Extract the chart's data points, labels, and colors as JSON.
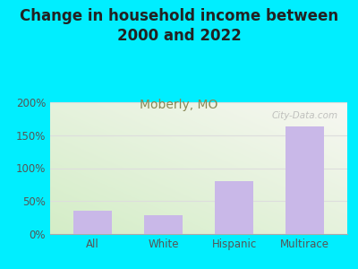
{
  "title": "Change in household income between\n2000 and 2022",
  "subtitle": "Moberly, MO",
  "categories": [
    "All",
    "White",
    "Hispanic",
    "Multirace"
  ],
  "values": [
    35,
    28,
    80,
    163
  ],
  "bar_color": "#c9b8e8",
  "title_fontsize": 12,
  "subtitle_fontsize": 10,
  "subtitle_color": "#888855",
  "background_outer": "#00eeff",
  "plot_bg_top_left": "#d4ecc8",
  "plot_bg_bottom_right": "#f5f5ee",
  "ylim": [
    0,
    200
  ],
  "yticks": [
    0,
    50,
    100,
    150,
    200
  ],
  "ytick_labels": [
    "0%",
    "50%",
    "100%",
    "150%",
    "200%"
  ],
  "watermark": "City-Data.com",
  "tick_color": "#555555",
  "grid_color": "#dddddd"
}
